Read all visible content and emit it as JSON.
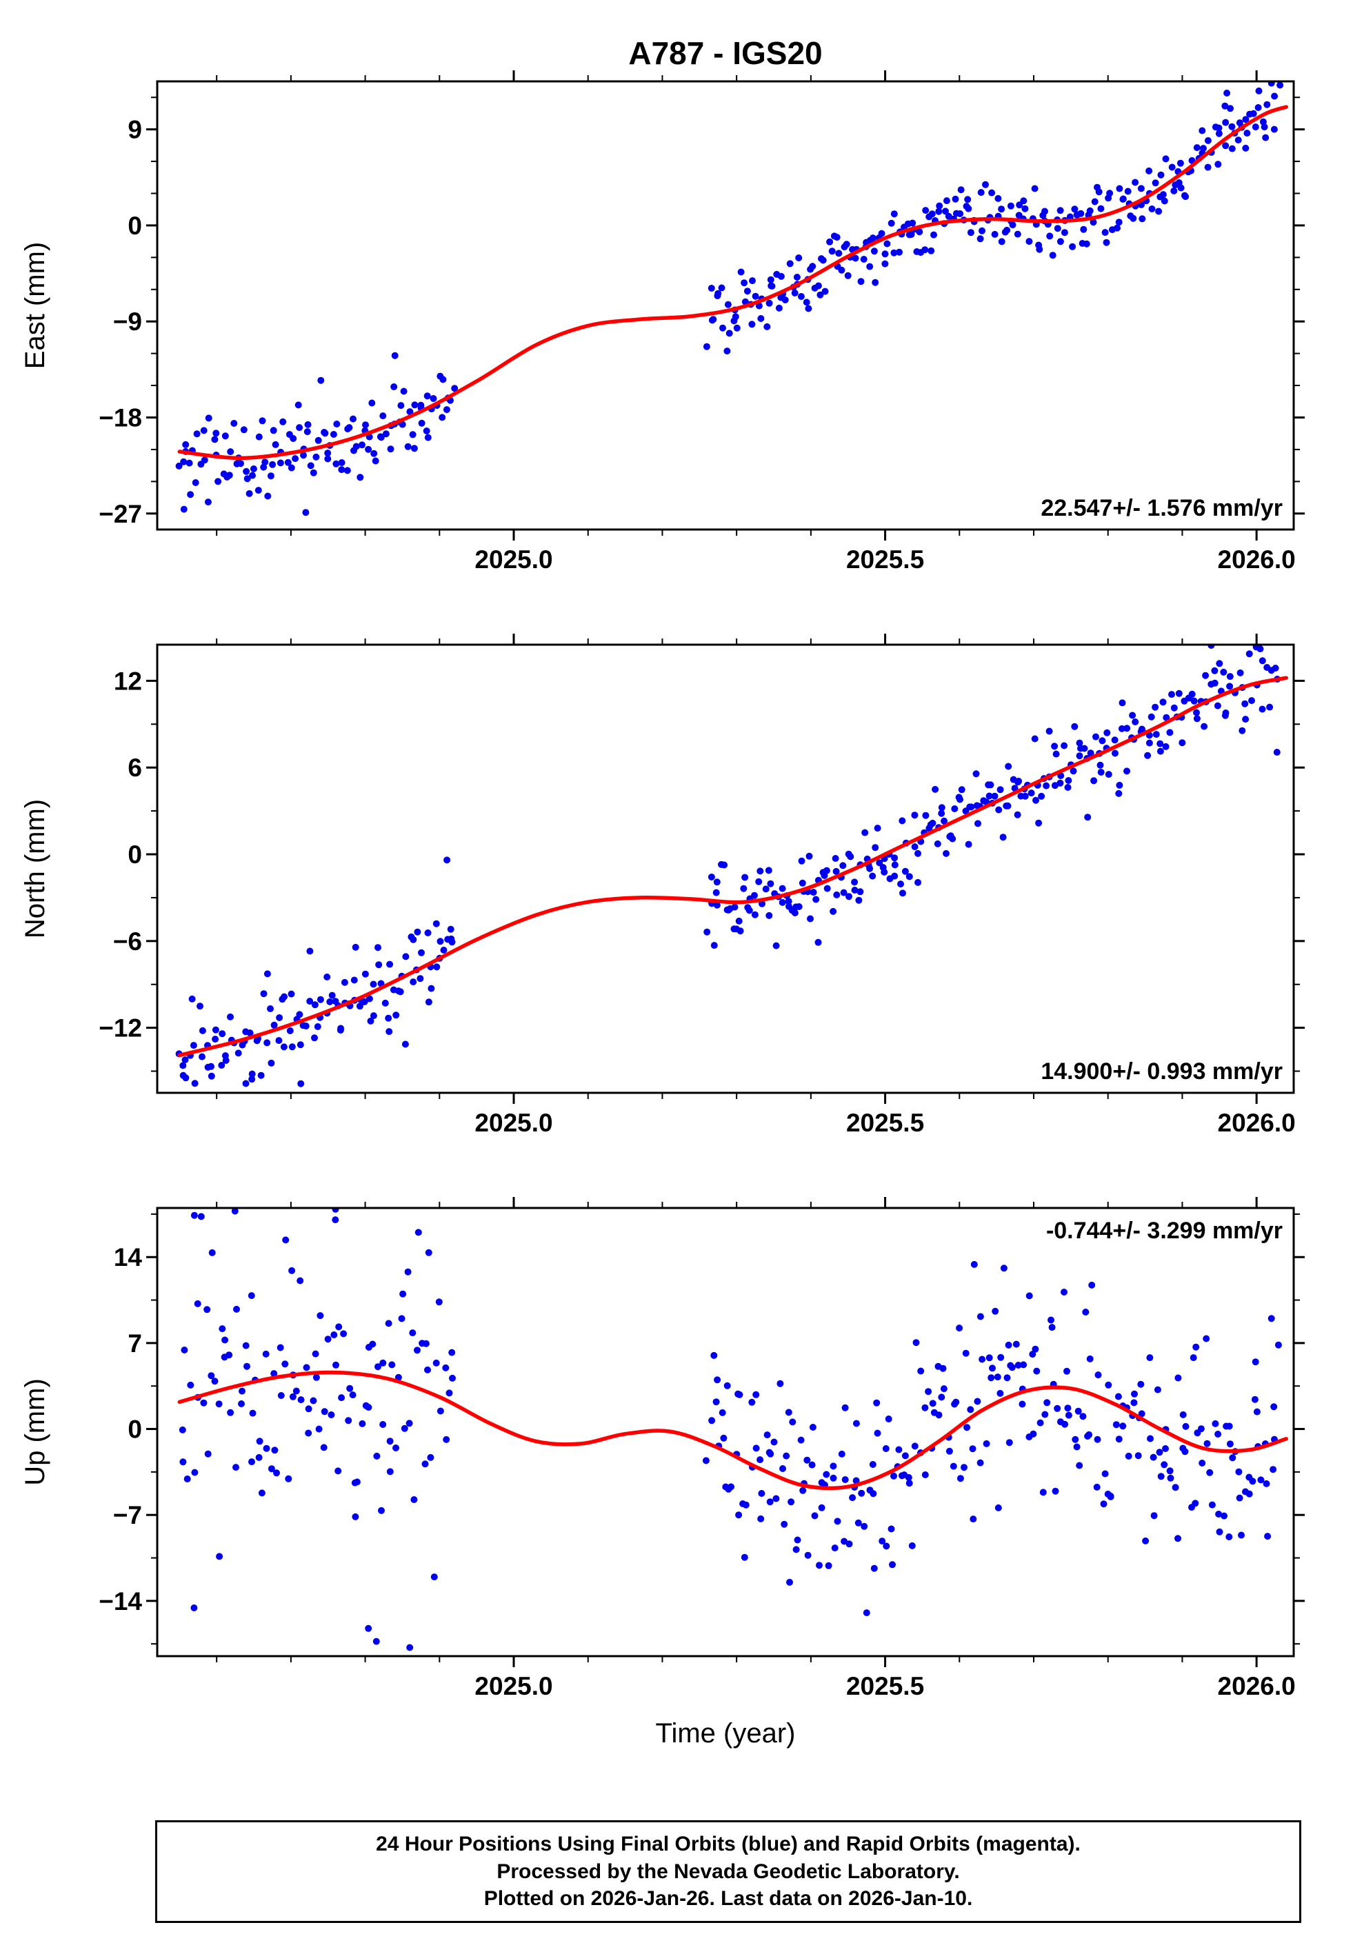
{
  "title": "A787 - IGS20",
  "xlabel": "Time (year)",
  "colors": {
    "points": "#0000ee",
    "fit": "#ff0000",
    "axis": "#000000",
    "background": "#ffffff"
  },
  "footer": {
    "line1": "24 Hour Positions Using Final Orbits (blue) and Rapid Orbits (magenta).",
    "line2": "Processed by the Nevada Geodetic Laboratory.",
    "line3": "Plotted on 2026-Jan-26. Last data on 2026-Jan-10."
  },
  "chart_data": [
    {
      "type": "scatter",
      "panel": "east",
      "ylabel": "East (mm)",
      "trend_label": "22.547+/- 1.576 mm/yr",
      "trend_label_corner": "bottom-right",
      "xlim": [
        2024.52,
        2026.05
      ],
      "ylim": [
        -28.5,
        13.5
      ],
      "xticks": [
        2025.0,
        2025.5,
        2026.0
      ],
      "xtick_labels": [
        "2025.0",
        "2025.5",
        "2026.0"
      ],
      "xtick_minor_step": 0.1,
      "yticks": [
        -27,
        -18,
        -9,
        0,
        9
      ],
      "ytick_minor_step": 3,
      "grid": false,
      "fit_curve": [
        [
          2024.55,
          -21.2
        ],
        [
          2024.63,
          -21.8
        ],
        [
          2024.71,
          -21.2
        ],
        [
          2024.79,
          -19.8
        ],
        [
          2024.87,
          -17.6
        ],
        [
          2024.95,
          -14.6
        ],
        [
          2025.03,
          -11.2
        ],
        [
          2025.1,
          -9.4
        ],
        [
          2025.17,
          -8.8
        ],
        [
          2025.24,
          -8.5
        ],
        [
          2025.31,
          -7.6
        ],
        [
          2025.38,
          -5.6
        ],
        [
          2025.45,
          -2.9
        ],
        [
          2025.51,
          -0.9
        ],
        [
          2025.57,
          0.2
        ],
        [
          2025.64,
          0.6
        ],
        [
          2025.71,
          0.4
        ],
        [
          2025.78,
          0.7
        ],
        [
          2025.84,
          2.2
        ],
        [
          2025.9,
          4.9
        ],
        [
          2025.96,
          8.2
        ],
        [
          2026.01,
          10.4
        ],
        [
          2026.04,
          11.1
        ]
      ],
      "scatter": {
        "seed": 101,
        "sections": [
          {
            "x0": 2024.55,
            "x1": 2024.92,
            "n": 120,
            "sd": 1.9
          },
          {
            "x0": 2025.26,
            "x1": 2026.03,
            "n": 260,
            "sd": 1.5
          }
        ],
        "outliers": [
          [
            2024.556,
            -26.6
          ],
          [
            2024.72,
            -26.9
          ],
          [
            2024.84,
            -12.2
          ],
          [
            2025.96,
            12.4
          ]
        ]
      }
    },
    {
      "type": "scatter",
      "panel": "north",
      "ylabel": "North (mm)",
      "trend_label": "14.900+/- 0.993 mm/yr",
      "trend_label_corner": "bottom-right",
      "xlim": [
        2024.52,
        2026.05
      ],
      "ylim": [
        -16.5,
        14.5
      ],
      "xticks": [
        2025.0,
        2025.5,
        2026.0
      ],
      "xtick_labels": [
        "2025.0",
        "2025.5",
        "2026.0"
      ],
      "xtick_minor_step": 0.1,
      "yticks": [
        -12,
        -6,
        0,
        6,
        12
      ],
      "ytick_minor_step": 3,
      "grid": false,
      "fit_curve": [
        [
          2024.55,
          -13.9
        ],
        [
          2024.63,
          -12.9
        ],
        [
          2024.71,
          -11.6
        ],
        [
          2024.79,
          -10.0
        ],
        [
          2024.87,
          -8.0
        ],
        [
          2024.95,
          -5.9
        ],
        [
          2025.03,
          -4.2
        ],
        [
          2025.1,
          -3.3
        ],
        [
          2025.17,
          -3.0
        ],
        [
          2025.24,
          -3.1
        ],
        [
          2025.31,
          -3.3
        ],
        [
          2025.38,
          -2.6
        ],
        [
          2025.45,
          -1.2
        ],
        [
          2025.52,
          0.5
        ],
        [
          2025.59,
          2.2
        ],
        [
          2025.66,
          3.9
        ],
        [
          2025.73,
          5.6
        ],
        [
          2025.8,
          7.2
        ],
        [
          2025.87,
          8.9
        ],
        [
          2025.93,
          10.5
        ],
        [
          2025.99,
          11.7
        ],
        [
          2026.04,
          12.2
        ]
      ],
      "scatter": {
        "seed": 202,
        "sections": [
          {
            "x0": 2024.55,
            "x1": 2024.92,
            "n": 120,
            "sd": 1.9
          },
          {
            "x0": 2025.26,
            "x1": 2026.03,
            "n": 260,
            "sd": 1.35
          }
        ],
        "outliers": [
          [
            2024.555,
            -15.3
          ],
          [
            2024.91,
            -0.4
          ],
          [
            2025.27,
            -6.3
          ],
          [
            2025.95,
            13.2
          ]
        ]
      }
    },
    {
      "type": "scatter",
      "panel": "up",
      "ylabel": "Up (mm)",
      "trend_label": "-0.744+/- 3.299 mm/yr",
      "trend_label_corner": "top-right",
      "xlim": [
        2024.52,
        2026.05
      ],
      "ylim": [
        -18.5,
        18
      ],
      "xticks": [
        2025.0,
        2025.5,
        2026.0
      ],
      "xtick_labels": [
        "2025.0",
        "2025.5",
        "2026.0"
      ],
      "xtick_minor_step": 0.1,
      "yticks": [
        -14,
        -7,
        0,
        7,
        14
      ],
      "ytick_minor_step": 3.5,
      "grid": false,
      "fit_curve": [
        [
          2024.55,
          2.2
        ],
        [
          2024.62,
          3.4
        ],
        [
          2024.69,
          4.3
        ],
        [
          2024.76,
          4.6
        ],
        [
          2024.83,
          4.1
        ],
        [
          2024.9,
          2.6
        ],
        [
          2024.97,
          0.4
        ],
        [
          2025.03,
          -1.0
        ],
        [
          2025.09,
          -1.2
        ],
        [
          2025.15,
          -0.4
        ],
        [
          2025.21,
          -0.2
        ],
        [
          2025.27,
          -1.4
        ],
        [
          2025.33,
          -3.2
        ],
        [
          2025.39,
          -4.6
        ],
        [
          2025.45,
          -4.7
        ],
        [
          2025.51,
          -3.4
        ],
        [
          2025.57,
          -1.1
        ],
        [
          2025.63,
          1.5
        ],
        [
          2025.69,
          3.1
        ],
        [
          2025.75,
          3.3
        ],
        [
          2025.81,
          2.0
        ],
        [
          2025.87,
          0.0
        ],
        [
          2025.93,
          -1.6
        ],
        [
          2025.99,
          -1.7
        ],
        [
          2026.04,
          -0.8
        ]
      ],
      "scatter": {
        "seed": 303,
        "sections": [
          {
            "x0": 2024.55,
            "x1": 2024.92,
            "n": 120,
            "sd": 6.2
          },
          {
            "x0": 2025.26,
            "x1": 2026.03,
            "n": 260,
            "sd": 4.3
          }
        ],
        "outliers": [
          [
            2024.57,
            17.4
          ],
          [
            2024.76,
            17.9
          ],
          [
            2024.815,
            -17.3
          ],
          [
            2024.86,
            -17.8
          ],
          [
            2025.62,
            13.4
          ],
          [
            2025.66,
            13.1
          ],
          [
            2026.02,
            9.0
          ]
        ]
      }
    }
  ]
}
